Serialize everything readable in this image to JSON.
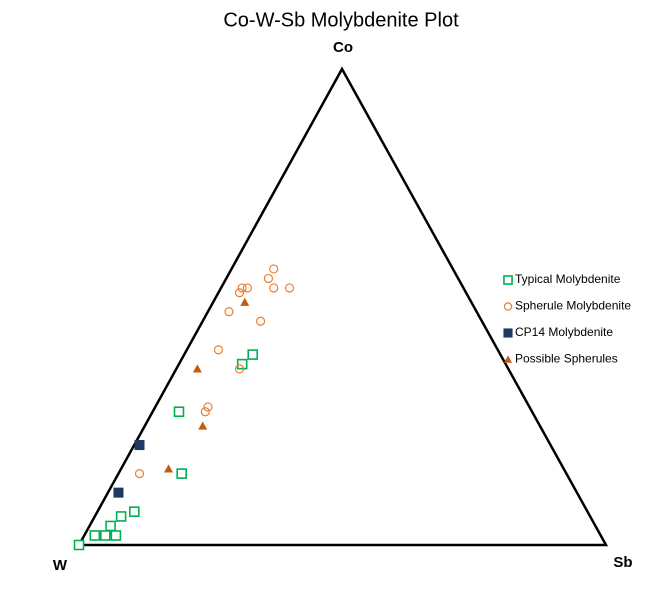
{
  "chart_data": {
    "type": "ternary",
    "title": "Co-W-Sb Molybdenite Plot",
    "vertices": {
      "left": "W",
      "top": "Co",
      "right": "Sb"
    },
    "legend": "right",
    "series": [
      {
        "name": "Typical Molybdenite",
        "color": "#00b050",
        "marker": "square-open",
        "w": [
          100,
          96,
          94,
          92,
          92,
          89,
          86,
          73,
          67,
          50,
          47
        ],
        "co": [
          0,
          2,
          2,
          2,
          4,
          6,
          7,
          15,
          28,
          38,
          40
        ],
        "sb": [
          0,
          2,
          4,
          6,
          4,
          5,
          7,
          12,
          5,
          12,
          13
        ]
      },
      {
        "name": "Spherule Molybdenite",
        "color": "#ed7d31",
        "marker": "circle-open",
        "w": [
          34,
          36,
          36,
          33,
          42,
          41,
          43,
          47,
          42,
          53,
          51,
          61,
          62,
          81
        ],
        "co": [
          58,
          56,
          54,
          54,
          54,
          54,
          53,
          49,
          47,
          41,
          37,
          29,
          28,
          15
        ],
        "sb": [
          8,
          8,
          10,
          13,
          4,
          5,
          4,
          4,
          11,
          6,
          12,
          10,
          10,
          4
        ]
      },
      {
        "name": "CP14 Molybdenite",
        "color": "#1f3864",
        "marker": "square",
        "w": [
          78,
          87
        ],
        "co": [
          21,
          11
        ],
        "sb": [
          1,
          2
        ]
      },
      {
        "name": "Possible Spherules",
        "color": "#c55a11",
        "marker": "triangle",
        "w": [
          43,
          59,
          64,
          75
        ],
        "co": [
          51,
          37,
          25,
          16
        ],
        "sb": [
          6,
          4,
          11,
          9
        ]
      }
    ]
  }
}
